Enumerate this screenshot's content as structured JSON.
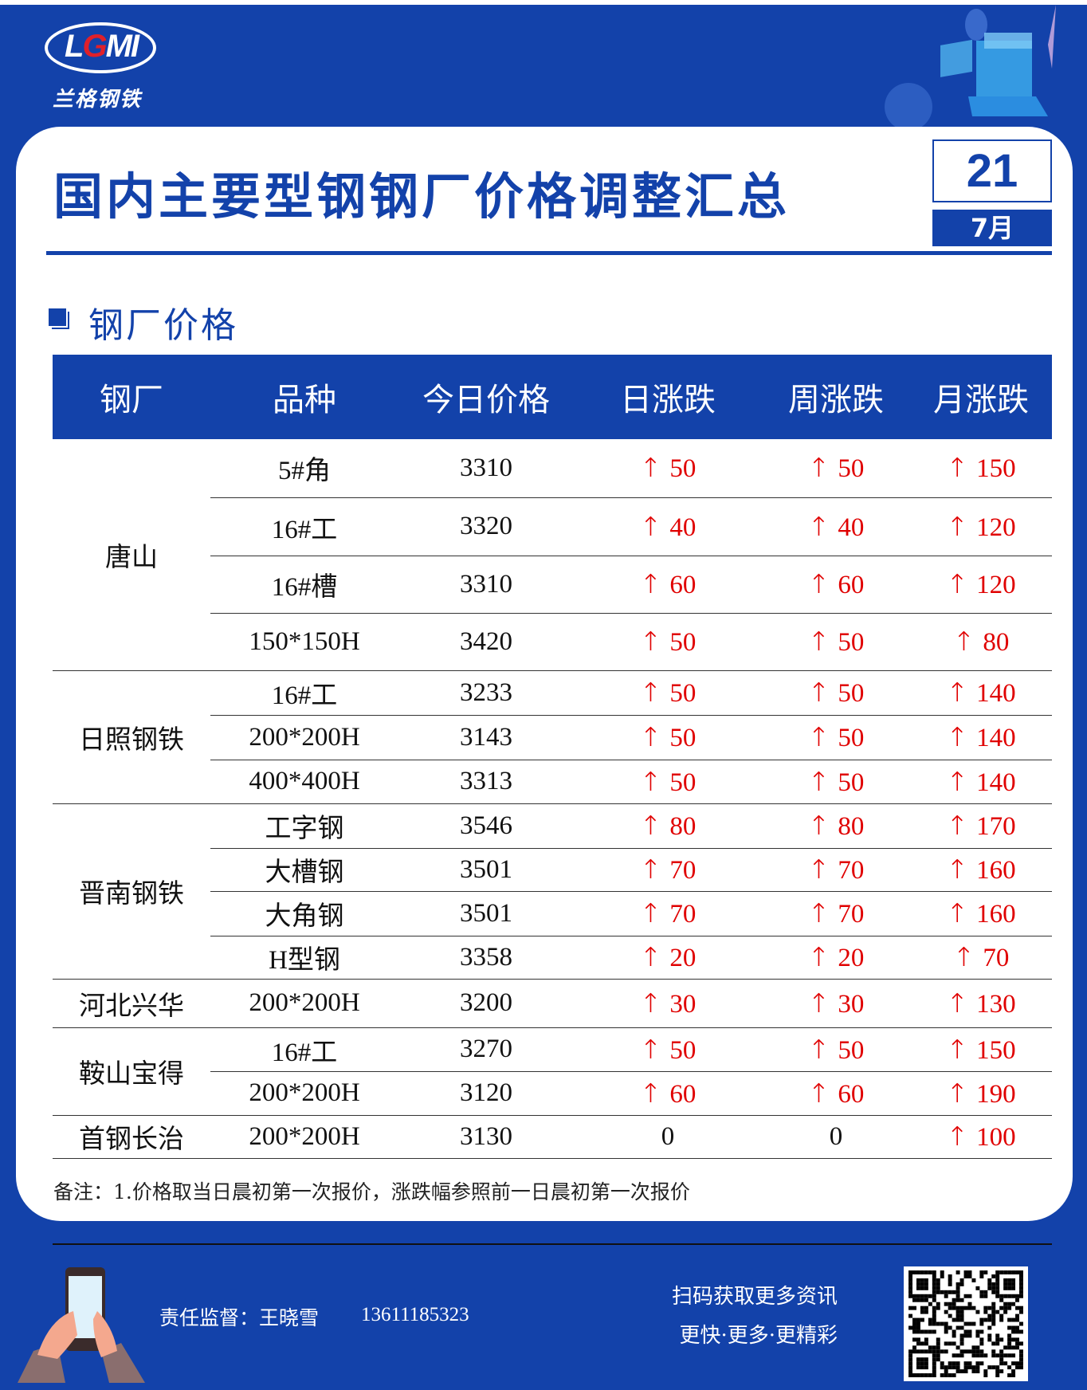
{
  "brand": {
    "logo_text": "LGMI",
    "logo_cn": "兰格钢铁"
  },
  "header": {
    "title": "国内主要型钢钢厂价格调整汇总",
    "day": "21",
    "month": "7月"
  },
  "section": {
    "title": "钢厂价格"
  },
  "table": {
    "columns": [
      "钢厂",
      "品种",
      "今日价格",
      "日涨跌",
      "周涨跌",
      "月涨跌"
    ],
    "groups": [
      {
        "mill": "唐山",
        "rows": [
          {
            "product": "5#角",
            "price": "3310",
            "day": "50",
            "week": "50",
            "month": "150"
          },
          {
            "product": "16#工",
            "price": "3320",
            "day": "40",
            "week": "40",
            "month": "120"
          },
          {
            "product": "16#槽",
            "price": "3310",
            "day": "60",
            "week": "60",
            "month": "120"
          },
          {
            "product": "150*150H",
            "price": "3420",
            "day": "50",
            "week": "50",
            "month": "80"
          }
        ]
      },
      {
        "mill": "日照钢铁",
        "rows": [
          {
            "product": "16#工",
            "price": "3233",
            "day": "50",
            "week": "50",
            "month": "140"
          },
          {
            "product": "200*200H",
            "price": "3143",
            "day": "50",
            "week": "50",
            "month": "140"
          },
          {
            "product": "400*400H",
            "price": "3313",
            "day": "50",
            "week": "50",
            "month": "140"
          }
        ]
      },
      {
        "mill": "晋南钢铁",
        "rows": [
          {
            "product": "工字钢",
            "price": "3546",
            "day": "80",
            "week": "80",
            "month": "170"
          },
          {
            "product": "大槽钢",
            "price": "3501",
            "day": "70",
            "week": "70",
            "month": "160"
          },
          {
            "product": "大角钢",
            "price": "3501",
            "day": "70",
            "week": "70",
            "month": "160"
          },
          {
            "product": "H型钢",
            "price": "3358",
            "day": "20",
            "week": "20",
            "month": "70"
          }
        ]
      },
      {
        "mill": "河北兴华",
        "rows": [
          {
            "product": "200*200H",
            "price": "3200",
            "day": "30",
            "week": "30",
            "month": "130"
          }
        ]
      },
      {
        "mill": "鞍山宝得",
        "rows": [
          {
            "product": "16#工",
            "price": "3270",
            "day": "50",
            "week": "50",
            "month": "150"
          },
          {
            "product": "200*200H",
            "price": "3120",
            "day": "60",
            "week": "60",
            "month": "190"
          }
        ]
      },
      {
        "mill": "首钢长治",
        "rows": [
          {
            "product": "200*200H",
            "price": "3130",
            "day": "0",
            "week": "0",
            "month": "100"
          }
        ]
      }
    ],
    "up_arrow": "↑"
  },
  "note": "备注：1.价格取当日晨初第一次报价，涨跌幅参照前一日晨初第一次报价",
  "footer": {
    "responsible": "责任监督：王晓雪",
    "phone": "13611185323",
    "scan_line1": "扫码获取更多资讯",
    "scan_line2": "更快·更多·更精彩"
  },
  "colors": {
    "brand_blue": "#1342aa",
    "rise_red": "#e00000"
  },
  "icons": {
    "section": "square-bullet-icon",
    "qr": "qr-code",
    "phone": "hand-holding-phone-illustration"
  }
}
